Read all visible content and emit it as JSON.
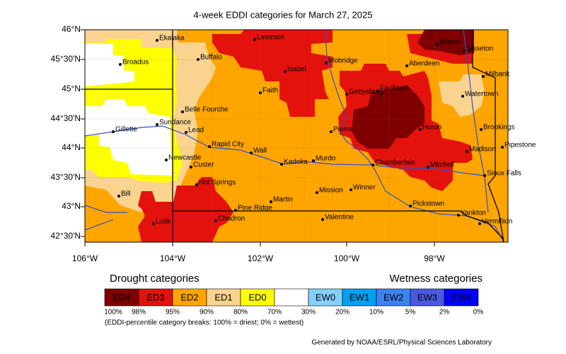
{
  "title": "4-week EDDI categories for March 27, 2025",
  "lat_labels": [
    "46°N",
    "45°30'N",
    "45°N",
    "44°30'N",
    "44°N",
    "43°30'N",
    "43°N",
    "42°30'N"
  ],
  "lon_labels": [
    "106°W",
    "104°W",
    "102°W",
    "100°W",
    "98°W"
  ],
  "cities": [
    "Ekalaka",
    "Lemmon",
    "Britton",
    "Sisseton",
    "Broadus",
    "Buffalo",
    "Mobridge",
    "Aberdeen",
    "Milbank",
    "Isabel",
    "Faith",
    "Faulkton",
    "Gettysburg",
    "Watertown",
    "Belle Fourche",
    "Sundance",
    "Lead",
    "Gillette",
    "Pierre",
    "Huron",
    "Brookings",
    "Rapid City",
    "Wall",
    "Madison",
    "Pipestone",
    "Newcastle",
    "Kadoka",
    "Murdo",
    "Chamberlain",
    "Mitchell",
    "Custer",
    "Sioux Falls",
    "Hot Springs",
    "Mission",
    "Winner",
    "Bill",
    "Martin",
    "Pickstown",
    "Pine Ridge",
    "Yankton",
    "Lusk",
    "Chadron",
    "Valentine",
    "Vermillion"
  ],
  "legend": {
    "drought_title": "Drought categories",
    "wetness_title": "Wetness categories",
    "categories": [
      {
        "label": "ED4",
        "color": "#7f0000"
      },
      {
        "label": "ED3",
        "color": "#e3120d"
      },
      {
        "label": "ED2",
        "color": "#ffa500"
      },
      {
        "label": "ED1",
        "color": "#fad38f"
      },
      {
        "label": "ED0",
        "color": "#ffff00"
      },
      {
        "label": null,
        "color": "#ffffff"
      },
      {
        "label": "EW0",
        "color": "#87cefa"
      },
      {
        "label": "EW1",
        "color": "#00a0f0"
      },
      {
        "label": "EW2",
        "color": "#3c82f0"
      },
      {
        "label": "EW3",
        "color": "#4a5ae0"
      },
      {
        "label": "EW4",
        "color": "#0000ff"
      }
    ],
    "breaks": [
      "100%",
      "98%",
      "95%",
      "90%",
      "80%",
      "70%",
      "30%",
      "20%",
      "10%",
      "5%",
      "2%",
      "0%"
    ],
    "note": "(EDDI-percentile category breaks: 100% = driest; 0% = wettest)"
  },
  "credit": "Generated by NOAA/ESRL/Physical Sciences Laboratory"
}
